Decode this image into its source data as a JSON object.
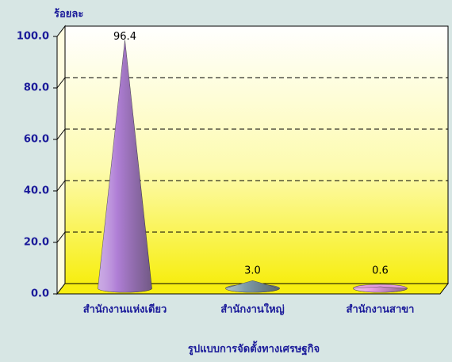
{
  "chart_data": {
    "type": "cone",
    "ylabel": "ร้อยละ",
    "xlabel": "รูปแบบการจัดตั้งทางเศรษฐกิจ",
    "categories": [
      "สำนักงานแห่งเดียว",
      "สำนักงานใหญ่",
      "สำนักงานสาขา"
    ],
    "values": [
      96.4,
      3.0,
      0.6
    ],
    "value_labels": [
      "96.4",
      "3.0",
      "0.6"
    ],
    "colors": [
      "#b07fd6",
      "#7f9caa",
      "#e79be0"
    ],
    "ylim": [
      0,
      100
    ],
    "yticks": [
      {
        "value": 0,
        "label": "0.0"
      },
      {
        "value": 20,
        "label": "20.0"
      },
      {
        "value": 40,
        "label": "40.0"
      },
      {
        "value": 60,
        "label": "60.0"
      },
      {
        "value": 80,
        "label": "80.0"
      },
      {
        "value": 100,
        "label": "100.0"
      }
    ],
    "grid": true
  }
}
